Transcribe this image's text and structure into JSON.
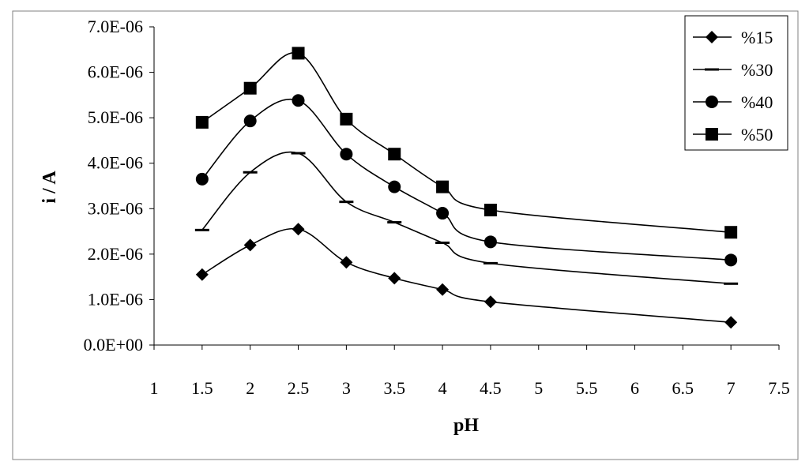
{
  "chart_data": {
    "type": "line",
    "title": "",
    "xlabel": "pH",
    "ylabel": "i / A",
    "xlim": [
      1,
      7.5
    ],
    "ylim": [
      0,
      7e-06
    ],
    "x_ticks": [
      "1",
      "1.5",
      "2",
      "2.5",
      "3",
      "3.5",
      "4",
      "4.5",
      "5",
      "5.5",
      "6",
      "6.5",
      "7",
      "7.5"
    ],
    "y_ticks": [
      "0.0E+00",
      "1.0E-06",
      "2.0E-06",
      "3.0E-06",
      "4.0E-06",
      "5.0E-06",
      "6.0E-06",
      "7.0E-06"
    ],
    "grid": false,
    "legend_position": "top-right",
    "x": [
      1.5,
      2,
      2.5,
      3,
      3.5,
      4,
      4.5,
      7
    ],
    "series": [
      {
        "name": "%15",
        "marker": "diamond",
        "values": [
          1.55e-06,
          2.2e-06,
          2.55e-06,
          1.82e-06,
          1.47e-06,
          1.22e-06,
          9.5e-07,
          5e-07
        ]
      },
      {
        "name": "%30",
        "marker": "dash",
        "values": [
          2.53e-06,
          3.8e-06,
          4.22e-06,
          3.15e-06,
          2.7e-06,
          2.25e-06,
          1.8e-06,
          1.35e-06
        ]
      },
      {
        "name": "%40",
        "marker": "circle",
        "values": [
          3.65e-06,
          4.93e-06,
          5.38e-06,
          4.2e-06,
          3.48e-06,
          2.9e-06,
          2.27e-06,
          1.87e-06
        ]
      },
      {
        "name": "%50",
        "marker": "square",
        "values": [
          4.9e-06,
          5.65e-06,
          6.42e-06,
          4.97e-06,
          4.2e-06,
          3.48e-06,
          2.97e-06,
          2.48e-06
        ]
      }
    ],
    "colors": {
      "line": "#000000",
      "background": "#ffffff",
      "frame": "#808080"
    }
  }
}
